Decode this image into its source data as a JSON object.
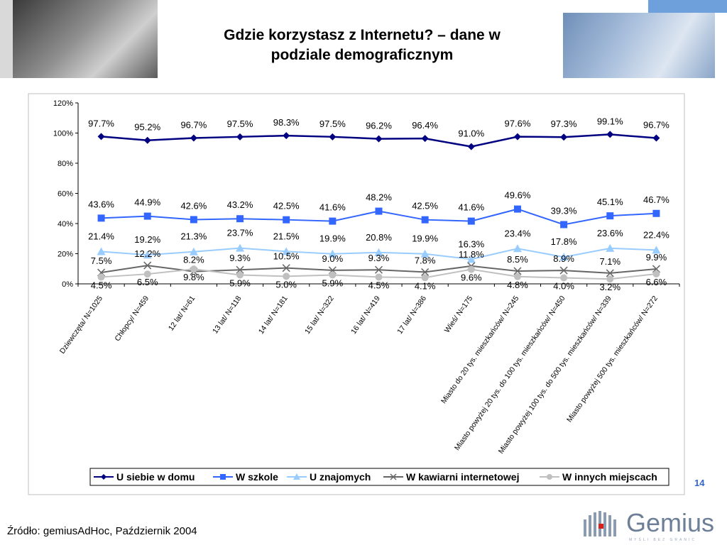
{
  "title": "Gdzie korzystasz z Internetu? – dane w podziale demograficznym",
  "title_lines": [
    "Gdzie korzystasz z Internetu? – dane w",
    "podziale demograficznym"
  ],
  "page_number": "14",
  "source": "Źródło: gemiusAdHoc, Październik 2004",
  "logo": {
    "text": "Gemius",
    "tagline": "MYŚLI BEZ GRANIC"
  },
  "colors": {
    "home": "#000080",
    "school": "#3366ff",
    "friends": "#99ccff",
    "cafe": "#666666",
    "other": "#c0c0c0"
  },
  "chart_data": {
    "type": "line",
    "title": "",
    "xlabel": "",
    "ylabel": "",
    "ylim": [
      0,
      120
    ],
    "y_ticks": [
      "0%",
      "20%",
      "40%",
      "60%",
      "80%",
      "100%",
      "120%"
    ],
    "grid": false,
    "legend_position": "bottom",
    "categories": [
      "Dziewczęta/ N=1025",
      "Chłopcy/ N=459",
      "12 lat/ N=61",
      "13 lat/ N=118",
      "14 lat/ N=181",
      "15 lat/ N=322",
      "16 lat/ N=419",
      "17 lat/ N=386",
      "Wieś/ N=175",
      "Miasto do 20 tys. mieszkańców/ N=245",
      "Miasto powyżej 20 tys. do 100 tys. mieszkańców/ N=450",
      "Miasto powyżej 100 tys. do 500 tys. mieszkańców/ N=339",
      "Miasto powyżej 500 tys. mieszkańców/ N=272"
    ],
    "series": [
      {
        "name": "U siebie w domu",
        "color": "#000080",
        "marker": "diamond",
        "values": [
          97.7,
          95.2,
          96.7,
          97.5,
          98.3,
          97.5,
          96.2,
          96.4,
          91.0,
          97.6,
          97.3,
          99.1,
          96.7
        ],
        "labels": [
          "97.7%",
          "95.2%",
          "96.7%",
          "97.5%",
          "98.3%",
          "97.5%",
          "96.2%",
          "96.4%",
          "91.0%",
          "97.6%",
          "97.3%",
          "99.1%",
          "96.7%"
        ]
      },
      {
        "name": "W szkole",
        "color": "#3366ff",
        "marker": "square",
        "values": [
          43.6,
          44.9,
          42.6,
          43.2,
          42.5,
          41.6,
          48.2,
          42.5,
          41.6,
          49.6,
          39.3,
          45.1,
          46.7
        ],
        "labels": [
          "43.6%",
          "44.9%",
          "42.6%",
          "43.2%",
          "42.5%",
          "41.6%",
          "48.2%",
          "42.5%",
          "41.6%",
          "49.6%",
          "39.3%",
          "45.1%",
          "46.7%"
        ]
      },
      {
        "name": "U znajomych",
        "color": "#99ccff",
        "marker": "triangle",
        "values": [
          21.4,
          19.2,
          21.3,
          23.7,
          21.5,
          19.9,
          20.8,
          19.9,
          16.3,
          23.4,
          17.8,
          23.6,
          22.4
        ],
        "labels": [
          "21.4%",
          "19.2%",
          "21.3%",
          "23.7%",
          "21.5%",
          "19.9%",
          "20.8%",
          "19.9%",
          "16.3%",
          "23.4%",
          "17.8%",
          "23.6%",
          "22.4%"
        ]
      },
      {
        "name": "W kawiarni internetowej",
        "color": "#666666",
        "marker": "x",
        "values": [
          7.5,
          12.2,
          8.2,
          9.3,
          10.5,
          9.0,
          9.3,
          7.8,
          11.8,
          8.5,
          8.9,
          7.1,
          9.9
        ],
        "labels": [
          "7.5%",
          "12.2%",
          "8.2%",
          "9.3%",
          "10.5%",
          "9.0%",
          "9.3%",
          "7.8%",
          "11.8%",
          "8.5%",
          "8.9%",
          "7.1%",
          "9.9%"
        ]
      },
      {
        "name": "W innych miejscach",
        "color": "#c0c0c0",
        "marker": "circle",
        "values": [
          4.5,
          6.5,
          9.8,
          5.9,
          5.0,
          5.9,
          4.5,
          4.1,
          9.6,
          4.8,
          4.0,
          3.2,
          6.6
        ],
        "labels": [
          "4.5%",
          "6.5%",
          "9.8%",
          "5.9%",
          "5.0%",
          "5.9%",
          "4.5%",
          "4.1%",
          "9.6%",
          "4.8%",
          "4.0%",
          "3.2%",
          "6.6%"
        ]
      }
    ]
  }
}
